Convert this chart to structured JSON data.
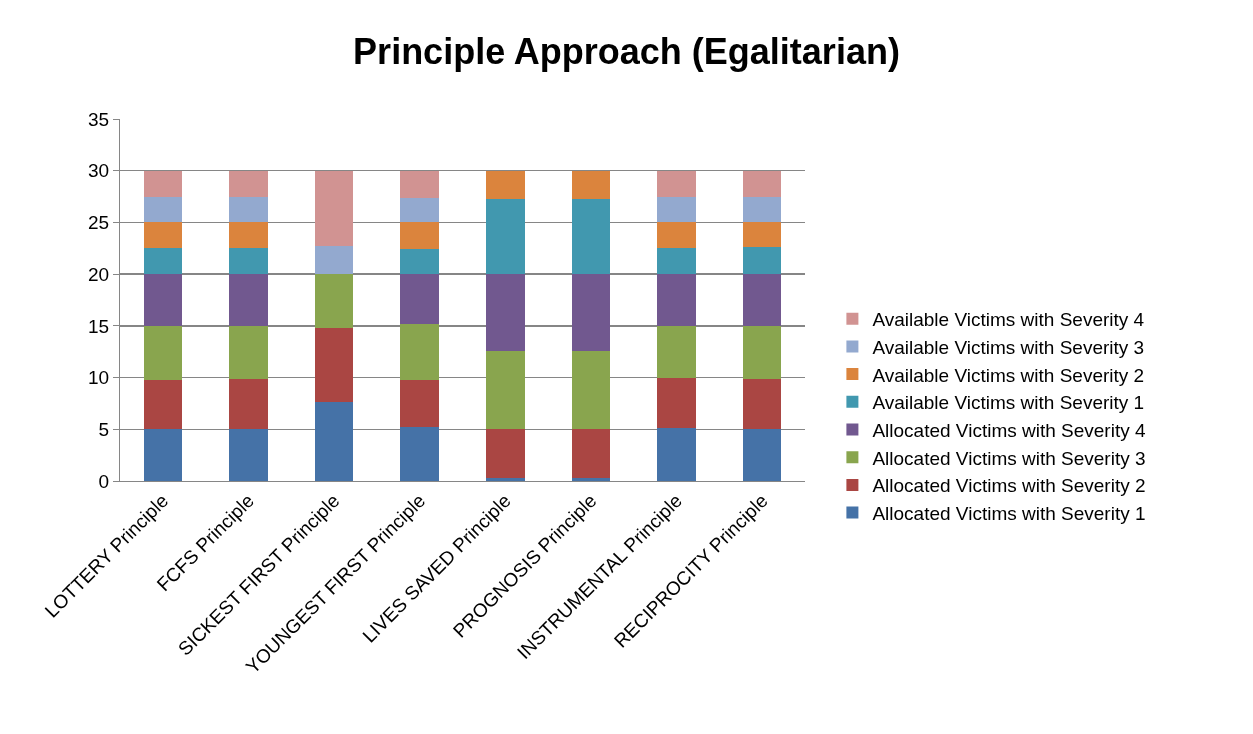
{
  "chart_data": {
    "type": "bar",
    "stacked": true,
    "title": "Principle Approach (Egalitarian)",
    "categories": [
      "LOTTERY Principle",
      "FCFS Principle",
      "SICKEST FIRST Principle",
      "YOUNGEST FIRST Principle",
      "LIVES SAVED Principle",
      "PROGNOSIS Principle",
      "INSTRUMENTAL Principle",
      "RECIPROCITY Principle"
    ],
    "series": [
      {
        "name": "Allocated Victims with Severity 1",
        "color": "#4572a7",
        "values": [
          5,
          5,
          7.6,
          5.2,
          0.3,
          0.3,
          5.1,
          5
        ]
      },
      {
        "name": "Allocated Victims with Severity 2",
        "color": "#aa4643",
        "values": [
          4.8,
          4.9,
          7.2,
          4.6,
          4.7,
          4.7,
          4.9,
          4.9
        ]
      },
      {
        "name": "Allocated Victims with Severity 3",
        "color": "#89a54e",
        "values": [
          5.2,
          5.1,
          5.2,
          5.4,
          7.6,
          7.6,
          5,
          5.1
        ]
      },
      {
        "name": "Allocated Victims with Severity 4",
        "color": "#71588f",
        "values": [
          5,
          5,
          0,
          4.8,
          7.4,
          7.4,
          5,
          5
        ]
      },
      {
        "name": "Available Victims with Severity 1",
        "color": "#4198af",
        "values": [
          2.5,
          2.5,
          0,
          2.4,
          7.3,
          7.3,
          2.5,
          2.6
        ]
      },
      {
        "name": "Available Victims with Severity 2",
        "color": "#db843d",
        "values": [
          2.5,
          2.5,
          0,
          2.6,
          2.7,
          2.7,
          2.5,
          2.4
        ]
      },
      {
        "name": "Available Victims with Severity 3",
        "color": "#93a9cf",
        "values": [
          2.5,
          2.5,
          2.7,
          2.4,
          0,
          0,
          2.5,
          2.5
        ]
      },
      {
        "name": "Available Victims with Severity 4",
        "color": "#d19392",
        "values": [
          2.5,
          2.5,
          7.3,
          2.6,
          0,
          0,
          2.5,
          2.5
        ]
      }
    ],
    "ylim": [
      0,
      35
    ],
    "yticks": [
      0,
      5,
      10,
      15,
      20,
      25,
      30,
      35
    ],
    "grid": "y",
    "legend": "right"
  }
}
